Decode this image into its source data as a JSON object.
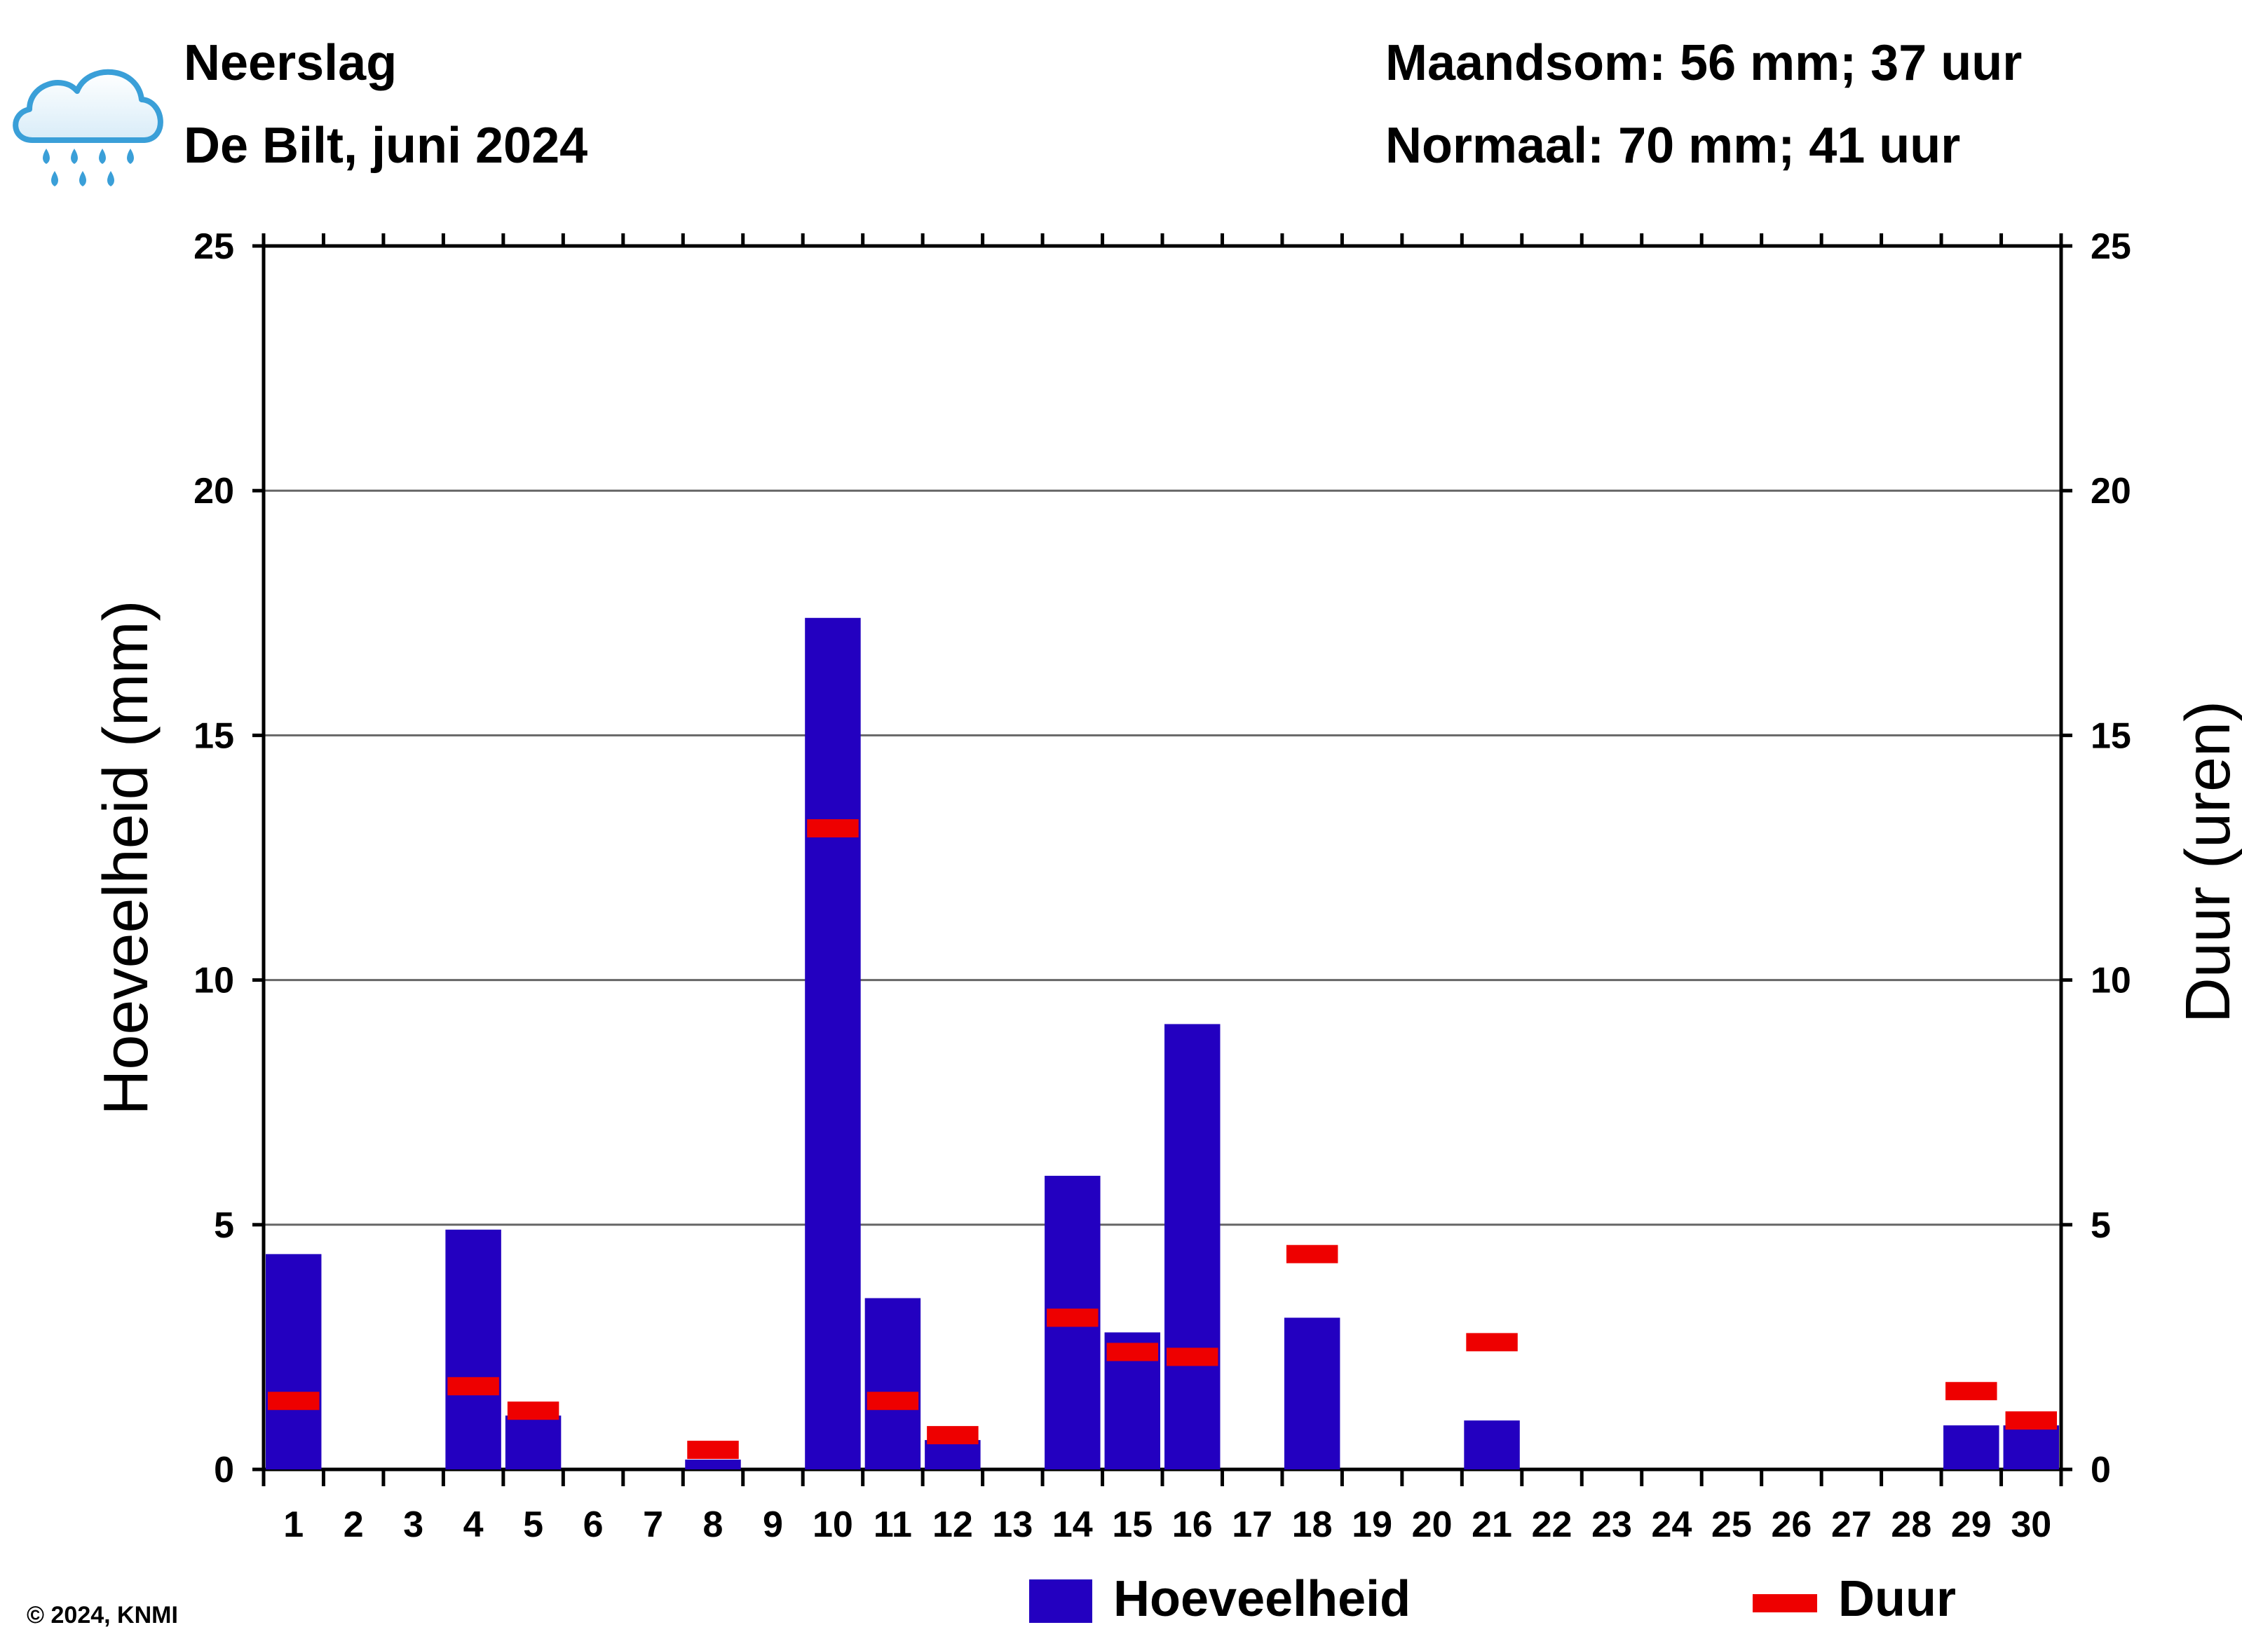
{
  "header": {
    "title": "Neerslag",
    "subtitle": "De Bilt, juni 2024",
    "month_total": "Maandsom: 56 mm; 37 uur",
    "normal": "Normaal: 70 mm; 41 uur",
    "icon": "rain-cloud-icon"
  },
  "copyright": "© 2024, KNMI",
  "legend": {
    "amount_label": "Hoeveelheid",
    "duration_label": "Duur",
    "amount_color": "#2300c0",
    "duration_color": "#ee0000"
  },
  "chart_data": {
    "type": "bar",
    "title": "Neerslag",
    "subtitle": "De Bilt, juni 2024",
    "ylabel": "Hoeveelheid (mm)",
    "y2label": "Duur (uren)",
    "ylim": [
      0,
      25
    ],
    "y2lim": [
      0,
      25
    ],
    "yticks": [
      0,
      5,
      10,
      15,
      20,
      25
    ],
    "grid": true,
    "legend_position": "bottom",
    "categories": [
      "1",
      "2",
      "3",
      "4",
      "5",
      "6",
      "7",
      "8",
      "9",
      "10",
      "11",
      "12",
      "13",
      "14",
      "15",
      "16",
      "17",
      "18",
      "19",
      "20",
      "21",
      "22",
      "23",
      "24",
      "25",
      "26",
      "27",
      "28",
      "29",
      "30"
    ],
    "series": [
      {
        "name": "Hoeveelheid",
        "kind": "bar",
        "axis": "left",
        "values": [
          4.4,
          0,
          0,
          4.9,
          1.1,
          0,
          0,
          0.2,
          0,
          17.4,
          3.5,
          0.6,
          0,
          6.0,
          2.8,
          9.1,
          0,
          3.1,
          0,
          0,
          1.0,
          0,
          0,
          0,
          0,
          0,
          0,
          0,
          0.9,
          0.9
        ]
      },
      {
        "name": "Duur",
        "kind": "marker",
        "axis": "right",
        "values": [
          1.4,
          0,
          0,
          1.7,
          1.2,
          0,
          0,
          0.4,
          0,
          13.1,
          1.4,
          0.7,
          0,
          3.1,
          2.4,
          2.3,
          0,
          4.4,
          0,
          0,
          2.6,
          0,
          0,
          0,
          0,
          0,
          0,
          0,
          1.6,
          1.0
        ]
      }
    ]
  }
}
